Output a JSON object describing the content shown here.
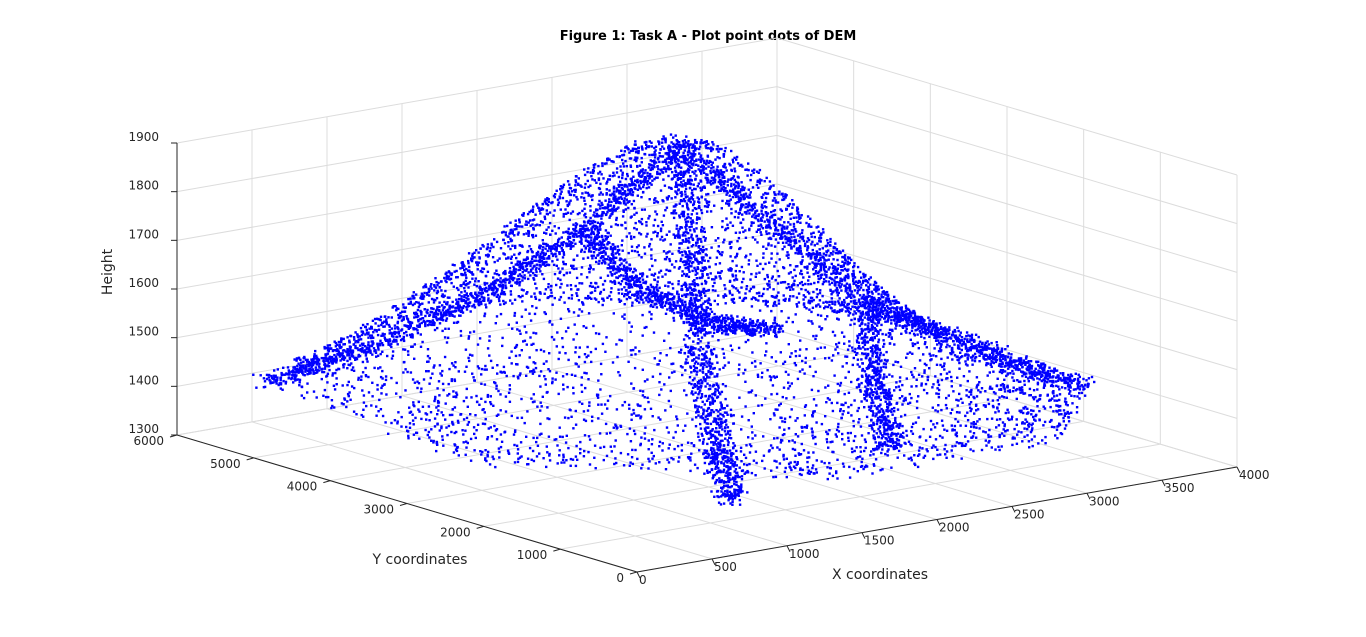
{
  "chart_data": {
    "type": "scatter",
    "title": "Figure 1: Task A - Plot point dots of DEM",
    "xlabel": "X coordinates",
    "ylabel": "Y coordinates",
    "zlabel": "Height",
    "xlim": [
      0,
      4000
    ],
    "ylim": [
      0,
      6000
    ],
    "zlim": [
      1300,
      1900
    ],
    "xticks": [
      "0",
      "500",
      "1000",
      "1500",
      "2000",
      "2500",
      "3000",
      "3500",
      "4000"
    ],
    "yticks": [
      "0",
      "1000",
      "2000",
      "3000",
      "4000",
      "5000",
      "6000"
    ],
    "zticks": [
      "1300",
      "1400",
      "1500",
      "1600",
      "1700",
      "1800",
      "1900"
    ],
    "grid": true,
    "marker_color": "#0000ff",
    "marker": "point",
    "ridges": [
      {
        "points": [
          [
            2120,
            3600,
            1890
          ],
          [
            2550,
            3300,
            1730
          ],
          [
            3000,
            2900,
            1560
          ],
          [
            3500,
            2400,
            1450
          ],
          [
            3950,
            1900,
            1380
          ]
        ]
      },
      {
        "points": [
          [
            2120,
            3600,
            1890
          ],
          [
            1750,
            4100,
            1720
          ],
          [
            1350,
            4650,
            1580
          ],
          [
            900,
            5300,
            1460
          ],
          [
            500,
            5850,
            1390
          ]
        ]
      },
      {
        "points": [
          [
            2120,
            3600,
            1890
          ],
          [
            1900,
            3000,
            1700
          ],
          [
            1600,
            2300,
            1540
          ],
          [
            1300,
            1500,
            1420
          ],
          [
            1000,
            700,
            1360
          ]
        ]
      },
      {
        "points": [
          [
            1750,
            4100,
            1720
          ],
          [
            2200,
            4300,
            1560
          ],
          [
            2800,
            4500,
            1450
          ],
          [
            3300,
            4700,
            1400
          ]
        ]
      },
      {
        "points": [
          [
            3000,
            2900,
            1560
          ],
          [
            2600,
            2000,
            1460
          ],
          [
            2200,
            1000,
            1390
          ]
        ]
      }
    ]
  }
}
